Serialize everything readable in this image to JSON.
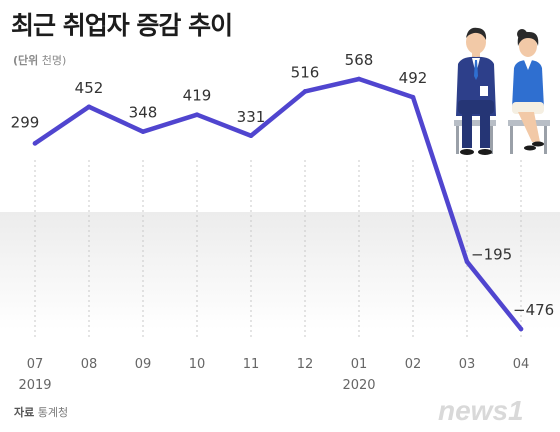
{
  "title": "최근 취업자 증감 추이",
  "unit_prefix": "(단위",
  "unit_value": "천명)",
  "source_prefix": "자료",
  "source_value": "통계청",
  "watermark_text": "news1",
  "colors": {
    "line": "#5045cf",
    "background_band_top": "#ececec",
    "background_band_bottom": "#ffffff",
    "gridline": "#c8c8c8",
    "text": "#333333",
    "watermark": "#d9d9d9"
  },
  "chart_data": {
    "type": "line",
    "title": "최근 취업자 증감 추이",
    "ylabel": "단위 천명",
    "categories": [
      "07",
      "08",
      "09",
      "10",
      "11",
      "12",
      "01",
      "02",
      "03",
      "04"
    ],
    "year_labels": [
      {
        "category": "07",
        "year": "2019"
      },
      {
        "category": "01",
        "year": "2020"
      }
    ],
    "series": [
      {
        "values": [
          299,
          452,
          348,
          419,
          331,
          516,
          568,
          492,
          -195,
          -476
        ],
        "labels": [
          "299",
          "452",
          "348",
          "419",
          "331",
          "516",
          "568",
          "492",
          "−195",
          "−476"
        ]
      }
    ],
    "ylim": [
      -476,
      568
    ],
    "grid": "vertical-dotted",
    "legend": "none"
  }
}
